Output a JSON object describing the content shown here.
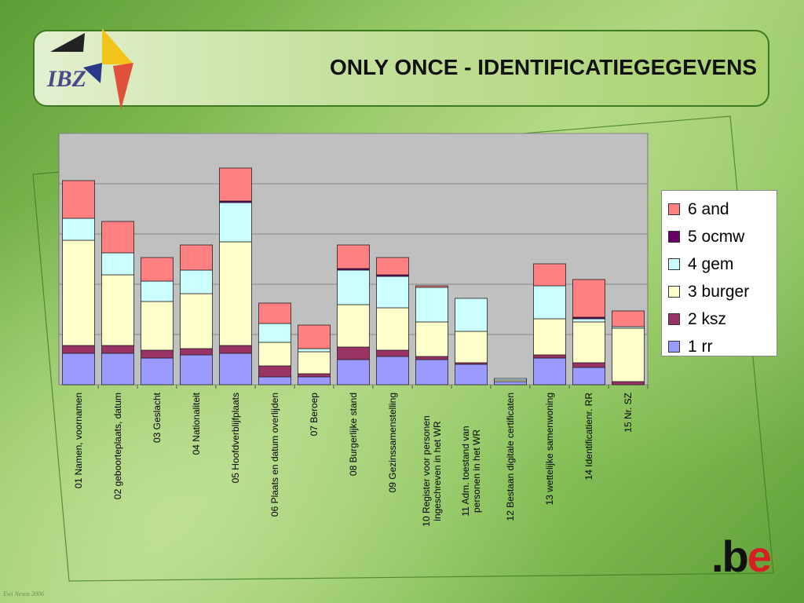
{
  "slide": {
    "title": "ONLY ONCE -  IDENTIFICATIEGEGEVENS",
    "logo_text": "IBZ",
    "be_logo": ".be",
    "footnote": "Ewi Nexus 2006"
  },
  "colors": {
    "1 rr": "#9a9aff",
    "2 ksz": "#993366",
    "3 burger": "#ffffcc",
    "4 gem": "#ccffff",
    "5 ocmw": "#660066",
    "6 and": "#ff8080",
    "plot_bg": "#c0c0c0",
    "gridline": "#888888"
  },
  "chart_data": {
    "type": "bar",
    "stacked": true,
    "categories": [
      "01 Namen, voornamen",
      "02 geboorteplaats, datum",
      "03 Geslacht",
      "04 Nationaliteit",
      "05 Hoofdverblijfplaats",
      "06 Plaats en datum overlijden",
      "07 Beroep",
      "08 Burgerlijke stand",
      "09 Gezinssamenstelling",
      "10 Register voor personen ingeschreven in het WR",
      "11 Adm. toestand van personen in het WR",
      "12 Bestaan digitale certificaten",
      "13 wettelijke samenwoning",
      "14 Identificatienr. RR",
      "15 Nr. SZ"
    ],
    "series": [
      {
        "name": "1 rr",
        "values": [
          20,
          20,
          17,
          19,
          20,
          5,
          5,
          16,
          18,
          16,
          13,
          2,
          17,
          11,
          0
        ]
      },
      {
        "name": "2 ksz",
        "values": [
          5,
          5,
          5,
          4,
          5,
          7,
          2,
          8,
          4,
          2,
          1,
          0,
          2,
          3,
          2
        ]
      },
      {
        "name": "3 burger",
        "values": [
          67,
          45,
          31,
          35,
          66,
          15,
          14,
          27,
          27,
          22,
          20,
          1,
          23,
          26,
          34
        ]
      },
      {
        "name": "4 gem",
        "values": [
          14,
          14,
          13,
          15,
          25,
          12,
          2,
          22,
          20,
          22,
          21,
          1,
          21,
          2,
          1
        ]
      },
      {
        "name": "5 ocmw",
        "values": [
          0,
          0,
          0,
          0,
          1,
          0,
          0,
          1,
          1,
          0,
          0,
          0,
          0,
          1,
          0
        ]
      },
      {
        "name": "6 and",
        "values": [
          24,
          20,
          15,
          16,
          21,
          13,
          15,
          15,
          11,
          1,
          0,
          0,
          14,
          24,
          10
        ]
      }
    ],
    "ylim": [
      0,
      160
    ],
    "gridlines": [
      0,
      32,
      64,
      96,
      128,
      160
    ],
    "grid": true,
    "legend_position": "right",
    "legend_order": [
      "6 and",
      "5 ocmw",
      "4 gem",
      "3 burger",
      "2 ksz",
      "1 rr"
    ],
    "xlabel": "",
    "ylabel": "",
    "title": ""
  }
}
